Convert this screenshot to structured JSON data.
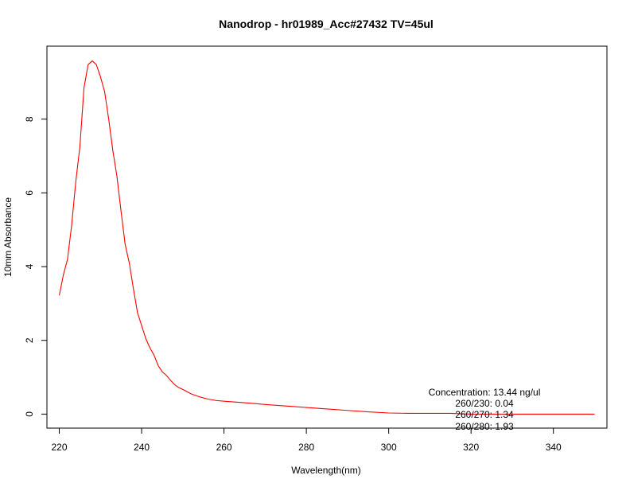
{
  "chart_data": {
    "type": "line",
    "title": "Nanodrop - hr01989_Acc#27432  TV=45ul",
    "xlabel": "Wavelength(nm)",
    "ylabel": "10mm Absorbance",
    "xlim": [
      217,
      353
    ],
    "ylim": [
      -0.38,
      9.98
    ],
    "xticks": [
      220,
      240,
      260,
      280,
      300,
      320,
      340
    ],
    "yticks": [
      0,
      2,
      4,
      6,
      8
    ],
    "grid": false,
    "line_color": "#ff0000",
    "series": [
      {
        "x": [
          220,
          221,
          222,
          223,
          224,
          225,
          226,
          227,
          228,
          229,
          230,
          231,
          232,
          233,
          234,
          235,
          236,
          237,
          238,
          239,
          240,
          241,
          242,
          243,
          244,
          245,
          246,
          247,
          248,
          249,
          250,
          252,
          254,
          256,
          258,
          260,
          265,
          270,
          275,
          280,
          285,
          290,
          295,
          300,
          305,
          310,
          315,
          320,
          325,
          330,
          335,
          340,
          345,
          350
        ],
        "y": [
          3.22,
          3.78,
          4.2,
          5.12,
          6.3,
          7.25,
          8.85,
          9.48,
          9.58,
          9.48,
          9.15,
          8.75,
          8.0,
          7.15,
          6.45,
          5.5,
          4.6,
          4.1,
          3.4,
          2.75,
          2.4,
          2.05,
          1.8,
          1.6,
          1.32,
          1.15,
          1.05,
          0.92,
          0.8,
          0.72,
          0.67,
          0.55,
          0.47,
          0.41,
          0.37,
          0.35,
          0.31,
          0.26,
          0.22,
          0.18,
          0.14,
          0.1,
          0.06,
          0.03,
          0.02,
          0.02,
          0.02,
          0.0,
          0.0,
          0.0,
          0.0,
          0.0,
          0.0,
          0.0
        ]
      }
    ],
    "annotations": [
      "Concentration: 13.44 ng/ul",
      "260/230: 0.04",
      "260/270: 1.34",
      "260/280: 1.93"
    ]
  }
}
